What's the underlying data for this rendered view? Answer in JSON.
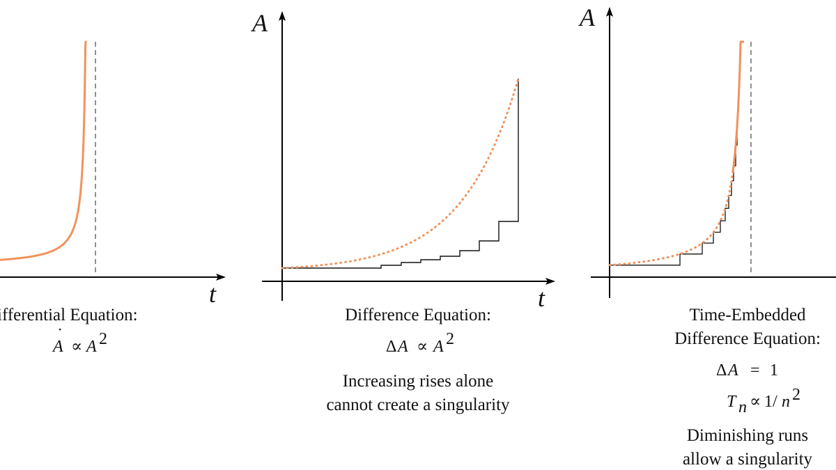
{
  "colors": {
    "curve": "#f0925c",
    "ink": "#111111",
    "axis": "#000000"
  },
  "panel_left": {
    "axis_t": "t",
    "caption": "ifferential Equation:",
    "equation": {
      "lhs": "A",
      "lhs_accent": "˙",
      "op": "∝",
      "rhs": "A",
      "rhs_exp": "2"
    }
  },
  "panel_middle": {
    "axis_a": "A",
    "axis_t": "t",
    "caption": "Difference Equation:",
    "equation": {
      "prefix": "Δ",
      "lhs": "A",
      "op": "∝",
      "rhs": "A",
      "rhs_exp": "2"
    },
    "note_line1": "Increasing rises alone",
    "note_line2": "cannot create a singularity"
  },
  "panel_right": {
    "axis_a": "A",
    "caption_line1": "Time-Embedded",
    "caption_line2": "Difference Equation:",
    "equation1": {
      "prefix": "Δ",
      "lhs": "A",
      "op": "=",
      "rhs": "1"
    },
    "equation2": {
      "lhs": "T",
      "lhs_sub": "n",
      "op": "∝",
      "rhs": "1/",
      "rhs_var": "n",
      "rhs_exp": "2"
    },
    "note_line1": "Diminishing runs",
    "note_line2": "allow a singularity"
  }
}
